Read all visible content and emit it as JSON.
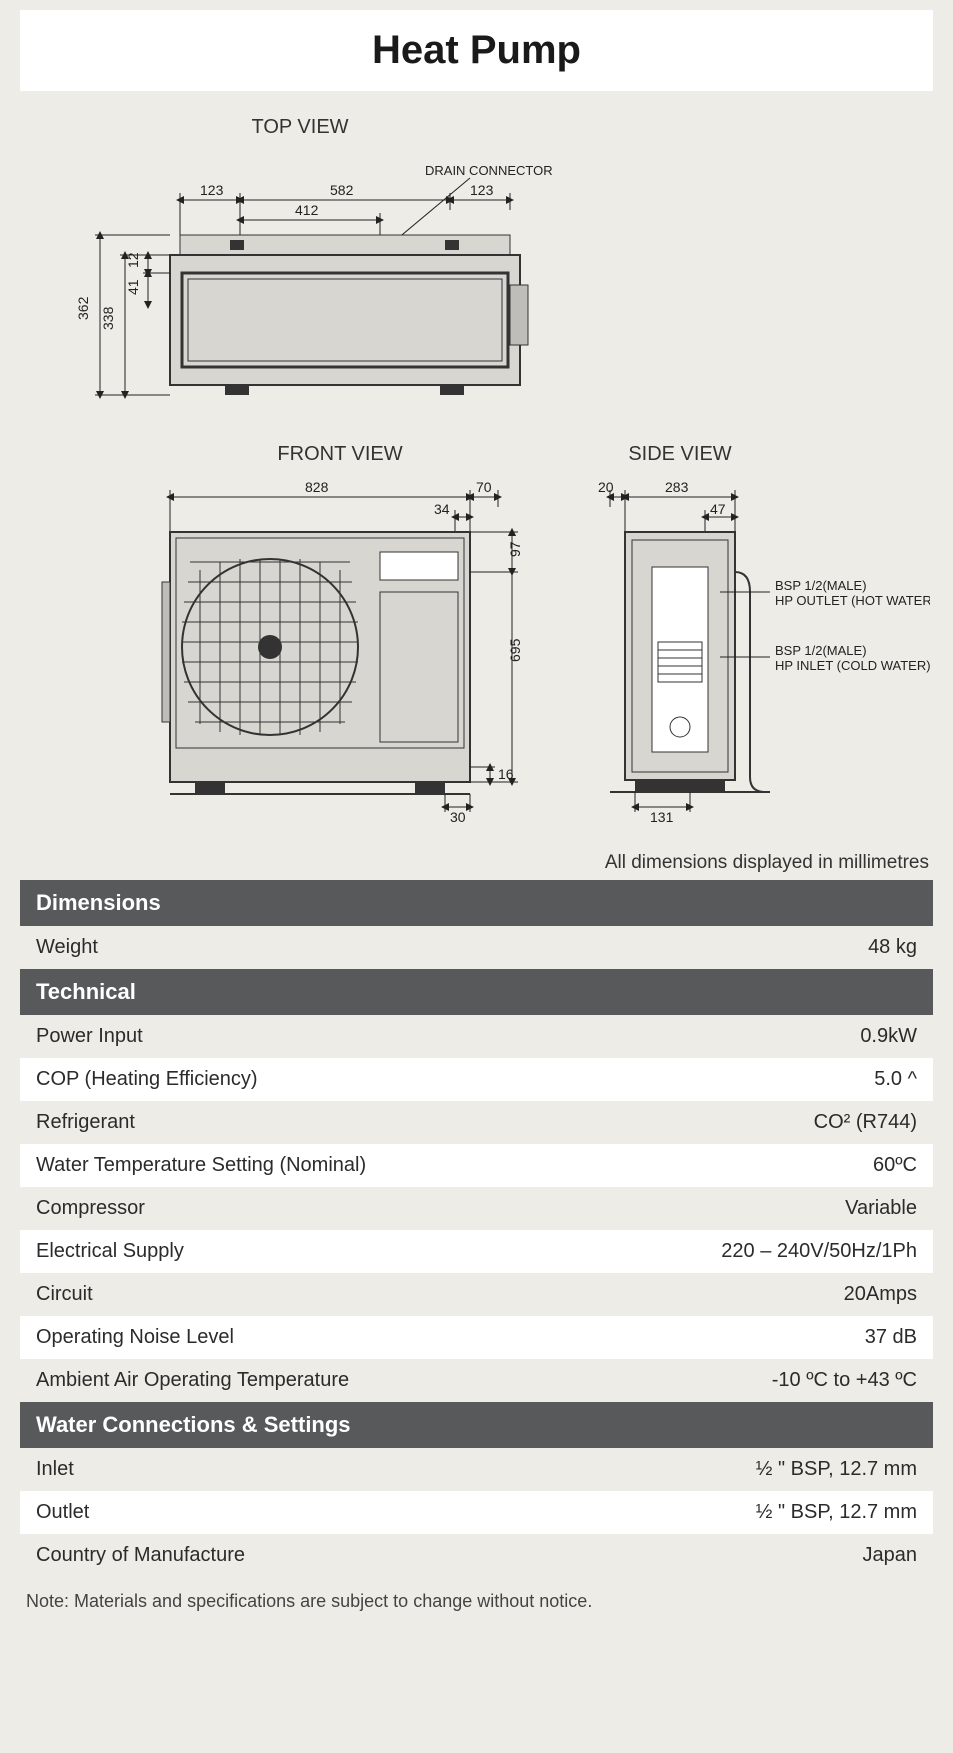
{
  "title": "Heat Pump",
  "dims_note": "All dimensions displayed in millimetres",
  "note": "Note: Materials and specifications are subject to change without notice.",
  "views": {
    "top": {
      "label": "TOP VIEW",
      "callout": "DRAIN CONNECTOR",
      "dims": {
        "w1": "123",
        "w2": "582",
        "w3": "123",
        "w4": "412",
        "h1": "362",
        "h2": "338",
        "h3": "41",
        "h4": "12"
      }
    },
    "front": {
      "label": "FRONT VIEW",
      "dims": {
        "w": "828",
        "w2": "70",
        "w3": "34",
        "w4": "30",
        "h": "695",
        "h2": "97",
        "h3": "16"
      }
    },
    "side": {
      "label": "SIDE VIEW",
      "dims": {
        "w1": "20",
        "w2": "283",
        "w3": "47",
        "w4": "131"
      },
      "callouts": {
        "out1": "BSP 1/2(MALE)",
        "out2": "HP OUTLET (HOT WATER)",
        "in1": "BSP 1/2(MALE)",
        "in2": "HP INLET (COLD WATER)"
      }
    }
  },
  "specs": [
    {
      "type": "header",
      "label": "Dimensions"
    },
    {
      "type": "row",
      "label": "Weight",
      "value": "48 kg"
    },
    {
      "type": "header",
      "label": "Technical"
    },
    {
      "type": "row",
      "label": "Power Input",
      "value": "0.9kW"
    },
    {
      "type": "row",
      "label": "COP (Heating Efficiency)",
      "value": "5.0 ^"
    },
    {
      "type": "row",
      "label": "Refrigerant",
      "value": "CO² (R744)"
    },
    {
      "type": "row",
      "label": "Water Temperature Setting (Nominal)",
      "value": "60ºC"
    },
    {
      "type": "row",
      "label": "Compressor",
      "value": "Variable"
    },
    {
      "type": "row",
      "label": "Electrical Supply",
      "value": "220 – 240V/50Hz/1Ph"
    },
    {
      "type": "row",
      "label": "Circuit",
      "value": "20Amps"
    },
    {
      "type": "row",
      "label": "Operating Noise Level",
      "value": "37 dB"
    },
    {
      "type": "row",
      "label": "Ambient Air Operating Temperature",
      "value": "-10 ºC to +43 ºC"
    },
    {
      "type": "header",
      "label": "Water Connections & Settings"
    },
    {
      "type": "row",
      "label": "Inlet",
      "value": "½ \" BSP, 12.7 mm"
    },
    {
      "type": "row",
      "label": "Outlet",
      "value": "½ \" BSP, 12.7 mm"
    },
    {
      "type": "row",
      "label": "Country of Manufacture",
      "value": "Japan"
    }
  ],
  "styling": {
    "page_bg": "#eeece6",
    "header_bg": "#58595b",
    "header_fg": "#ffffff",
    "row_odd_bg": "#eeece6",
    "row_even_bg": "#ffffff",
    "row_fg": "#2b2b2b",
    "title_fontsize": 40,
    "section_fontsize": 22,
    "row_fontsize": 20,
    "diagram_stroke": "#333333",
    "diagram_fill": "#d8d6d0"
  }
}
